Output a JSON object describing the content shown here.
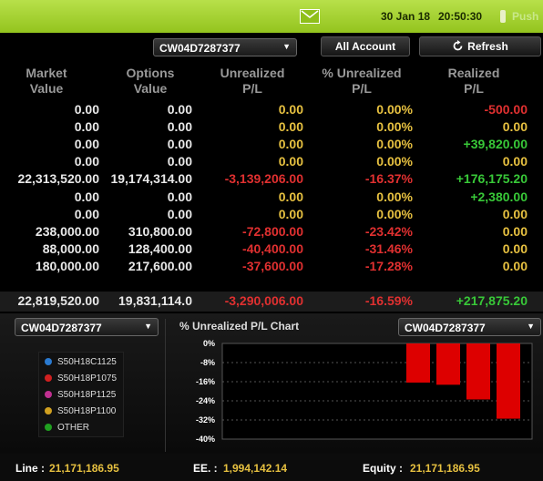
{
  "topbar": {
    "date": "30 Jan 18",
    "time": "20:50:30",
    "push_label": "Push",
    "bg_color": "#a4d030"
  },
  "controls": {
    "account_select": "CW04D7287377",
    "all_account_button": "All Account",
    "refresh_button": "Refresh"
  },
  "table": {
    "headers": [
      [
        "Market",
        "Value"
      ],
      [
        "Options",
        "Value"
      ],
      [
        "Unrealized",
        "P/L"
      ],
      [
        "% Unrealized",
        "P/L"
      ],
      [
        "Realized",
        "P/L"
      ]
    ],
    "rows": [
      {
        "market": "0.00",
        "options": "0.00",
        "unreal": "0.00",
        "pct": "0.00%",
        "realized": "-500.00",
        "unreal_c": "yellow",
        "pct_c": "yellow",
        "real_c": "red"
      },
      {
        "market": "0.00",
        "options": "0.00",
        "unreal": "0.00",
        "pct": "0.00%",
        "realized": "0.00",
        "unreal_c": "yellow",
        "pct_c": "yellow",
        "real_c": "yellow"
      },
      {
        "market": "0.00",
        "options": "0.00",
        "unreal": "0.00",
        "pct": "0.00%",
        "realized": "+39,820.00",
        "unreal_c": "yellow",
        "pct_c": "yellow",
        "real_c": "green"
      },
      {
        "market": "0.00",
        "options": "0.00",
        "unreal": "0.00",
        "pct": "0.00%",
        "realized": "0.00",
        "unreal_c": "yellow",
        "pct_c": "yellow",
        "real_c": "yellow"
      },
      {
        "market": "22,313,520.00",
        "options": "19,174,314.00",
        "unreal": "-3,139,206.00",
        "pct": "-16.37%",
        "realized": "+176,175.20",
        "unreal_c": "red",
        "pct_c": "red",
        "real_c": "green"
      },
      {
        "market": "0.00",
        "options": "0.00",
        "unreal": "0.00",
        "pct": "0.00%",
        "realized": "+2,380.00",
        "unreal_c": "yellow",
        "pct_c": "yellow",
        "real_c": "green"
      },
      {
        "market": "0.00",
        "options": "0.00",
        "unreal": "0.00",
        "pct": "0.00%",
        "realized": "0.00",
        "unreal_c": "yellow",
        "pct_c": "yellow",
        "real_c": "yellow"
      },
      {
        "market": "238,000.00",
        "options": "310,800.00",
        "unreal": "-72,800.00",
        "pct": "-23.42%",
        "realized": "0.00",
        "unreal_c": "red",
        "pct_c": "red",
        "real_c": "yellow"
      },
      {
        "market": "88,000.00",
        "options": "128,400.00",
        "unreal": "-40,400.00",
        "pct": "-31.46%",
        "realized": "0.00",
        "unreal_c": "red",
        "pct_c": "red",
        "real_c": "yellow"
      },
      {
        "market": "180,000.00",
        "options": "217,600.00",
        "unreal": "-37,600.00",
        "pct": "-17.28%",
        "realized": "0.00",
        "unreal_c": "red",
        "pct_c": "red",
        "real_c": "yellow"
      }
    ],
    "totals": {
      "market": "22,819,520.00",
      "options": "19,831,114.0",
      "unreal": "-3,290,006.00",
      "pct": "-16.59%",
      "realized": "+217,875.20",
      "unreal_c": "red",
      "pct_c": "red",
      "real_c": "green"
    }
  },
  "lower": {
    "left_select": "CW04D7287377",
    "chart_select": "CW04D7287377",
    "chart_title": "% Unrealized P/L Chart",
    "legend": [
      {
        "label": "S50H18C1125",
        "color": "#2a7ad0"
      },
      {
        "label": "S50H18P1075",
        "color": "#d02020"
      },
      {
        "label": "S50H18P1125",
        "color": "#c03090"
      },
      {
        "label": "S50H18P1100",
        "color": "#d0a020"
      },
      {
        "label": "OTHER",
        "color": "#20a020"
      }
    ]
  },
  "chart_data": {
    "type": "bar",
    "title": "% Unrealized P/L Chart",
    "categories": [
      "S50H18C1125",
      "S50H18P1075",
      "S50H18P1125",
      "S50H18P1100"
    ],
    "values": [
      -16.37,
      -17.28,
      -23.42,
      -31.46
    ],
    "yticks": [
      "0%",
      "-8%",
      "-16%",
      "-24%",
      "-32%",
      "-40%"
    ],
    "ylim": [
      -40,
      0
    ],
    "grid": true,
    "bar_color": "#dd0000"
  },
  "footer": {
    "line_label": "Line :",
    "line_value": "21,171,186.95",
    "ee_label": "EE. :",
    "ee_value": "1,994,142.14",
    "equity_label": "Equity :",
    "equity_value": "21,171,186.95"
  }
}
